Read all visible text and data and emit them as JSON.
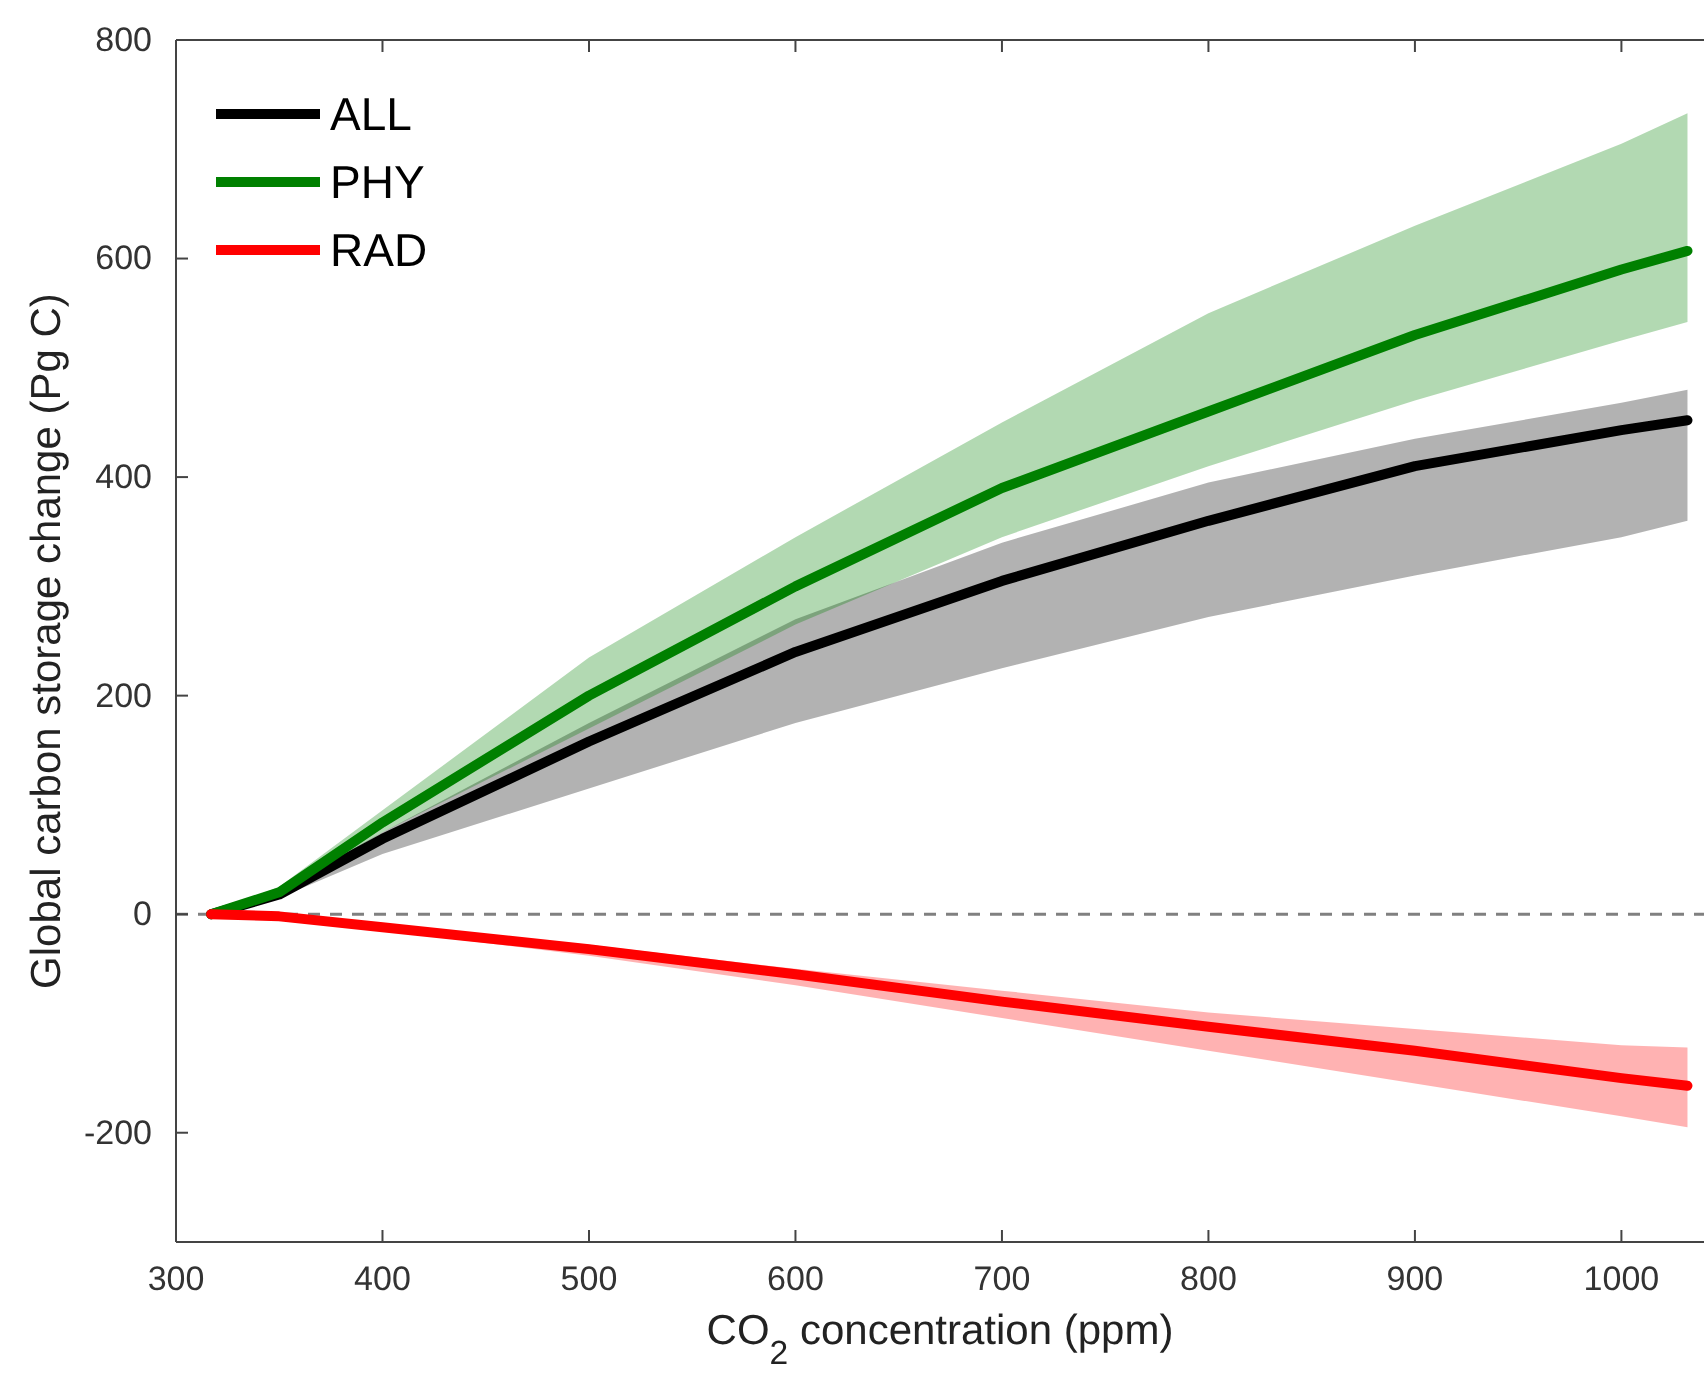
{
  "chart_data": {
    "type": "line",
    "xlabel": "CO$_{2}$ concentration (ppm)",
    "ylabel": "Global carbon storage change (Pg C)",
    "x": [
      317,
      350,
      400,
      500,
      600,
      700,
      800,
      900,
      1000,
      1032
    ],
    "series": [
      {
        "name": "ALL",
        "color": "#000000",
        "values": [
          0,
          18,
          69,
          158,
          240,
          305,
          360,
          410,
          443,
          452
        ],
        "lower": [
          0,
          15,
          55,
          115,
          175,
          225,
          272,
          310,
          345,
          360
        ],
        "upper": [
          0,
          22,
          75,
          175,
          270,
          340,
          395,
          435,
          468,
          480
        ]
      },
      {
        "name": "PHY",
        "color": "#008000",
        "values": [
          0,
          20,
          84,
          200,
          300,
          390,
          460,
          530,
          590,
          607
        ],
        "lower": [
          0,
          18,
          75,
          170,
          265,
          345,
          410,
          470,
          525,
          542
        ],
        "upper": [
          0,
          25,
          95,
          235,
          345,
          450,
          550,
          630,
          705,
          733
        ]
      },
      {
        "name": "RAD",
        "color": "#ff0000",
        "values": [
          0,
          -2,
          -12,
          -32,
          -55,
          -80,
          -103,
          -125,
          -150,
          -157
        ],
        "lower": [
          0,
          -3,
          -15,
          -38,
          -65,
          -95,
          -125,
          -155,
          -185,
          -195
        ],
        "upper": [
          0,
          -1,
          -9,
          -28,
          -50,
          -70,
          -90,
          -105,
          -120,
          -122
        ]
      }
    ],
    "xlim": [
      300,
      1040
    ],
    "xticks": [
      300,
      400,
      500,
      600,
      700,
      800,
      900,
      1000
    ],
    "ylim": [
      -300,
      800
    ],
    "yticks": [
      -200,
      0,
      200,
      400,
      600,
      800
    ],
    "ref_lines": [
      {
        "axis": "y",
        "value": 0,
        "color": "#808080",
        "line_style": "dashed"
      }
    ],
    "grid": false,
    "legend": "top left",
    "line_style": "solid",
    "marker": "none"
  }
}
